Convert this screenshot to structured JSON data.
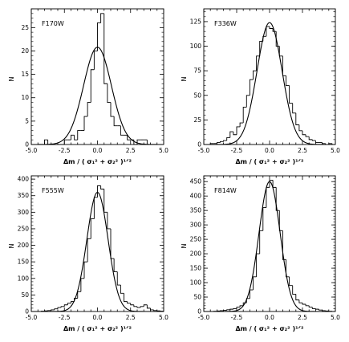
{
  "chart_data": [
    {
      "type": "bar",
      "label": "F170W",
      "title": "",
      "xlabel": "Δm / ( σ₁² + σ₂² )¹ᐟ²",
      "ylabel": "N",
      "xlim": [
        -5.0,
        5.0
      ],
      "ylim": [
        0,
        29
      ],
      "x_ticks": [
        "-5.0",
        "-2.5",
        "0.0",
        "2.5",
        "5.0"
      ],
      "y_ticks": [
        0,
        5,
        10,
        15,
        20,
        25
      ],
      "bin_edges": [
        -5.0,
        -4.75,
        -4.5,
        -4.25,
        -4.0,
        -3.75,
        -3.5,
        -3.25,
        -3.0,
        -2.75,
        -2.5,
        -2.25,
        -2.0,
        -1.75,
        -1.5,
        -1.25,
        -1.0,
        -0.75,
        -0.5,
        -0.25,
        0.0,
        0.25,
        0.5,
        0.75,
        1.0,
        1.25,
        1.5,
        1.75,
        2.0,
        2.25,
        2.5,
        2.75,
        3.0,
        3.25,
        3.5,
        3.75,
        4.0,
        4.25,
        4.5,
        4.75,
        5.0
      ],
      "values": [
        0,
        0,
        0,
        0,
        1,
        0,
        0,
        0,
        0,
        0,
        1,
        1,
        2,
        1,
        3,
        3,
        6,
        9,
        16,
        20,
        26,
        28,
        13,
        9,
        6,
        4,
        4,
        2,
        2,
        1,
        1,
        0,
        1,
        1,
        1,
        0,
        0,
        0,
        0,
        0
      ],
      "fit": {
        "type": "gaussian",
        "amplitude": 20.8,
        "mean": 0.0,
        "sigma": 1.05
      }
    },
    {
      "type": "bar",
      "label": "F336W",
      "title": "",
      "xlabel": "Δm / ( σ₁² + σ₂² )¹ᐟ²",
      "ylabel": "N",
      "xlim": [
        -5.0,
        5.0
      ],
      "ylim": [
        0,
        138
      ],
      "x_ticks": [
        "-5.0",
        "-2.5",
        "0.0",
        "2.5",
        "5.0"
      ],
      "y_ticks": [
        0,
        25,
        50,
        75,
        100,
        125
      ],
      "bin_edges": [
        -5.0,
        -4.75,
        -4.5,
        -4.25,
        -4.0,
        -3.75,
        -3.5,
        -3.25,
        -3.0,
        -2.75,
        -2.5,
        -2.25,
        -2.0,
        -1.75,
        -1.5,
        -1.25,
        -1.0,
        -0.75,
        -0.5,
        -0.25,
        0.0,
        0.25,
        0.5,
        0.75,
        1.0,
        1.25,
        1.5,
        1.75,
        2.0,
        2.25,
        2.5,
        2.75,
        3.0,
        3.25,
        3.5,
        3.75,
        4.0,
        4.25,
        4.5,
        4.75,
        5.0
      ],
      "values": [
        0,
        0,
        1,
        1,
        2,
        3,
        4,
        7,
        13,
        10,
        18,
        22,
        38,
        50,
        66,
        75,
        90,
        105,
        110,
        120,
        118,
        115,
        100,
        90,
        70,
        60,
        42,
        32,
        20,
        14,
        10,
        8,
        5,
        4,
        2,
        2,
        1,
        0,
        1,
        0
      ],
      "fit": {
        "type": "gaussian",
        "amplitude": 124,
        "mean": 0.0,
        "sigma": 0.95
      }
    },
    {
      "type": "bar",
      "label": "F555W",
      "title": "",
      "xlabel": "Δm / ( σ₁² + σ₂² )¹ᐟ²",
      "ylabel": "N",
      "xlim": [
        -5.0,
        5.0
      ],
      "ylim": [
        0,
        410
      ],
      "x_ticks": [
        "-5.0",
        "-2.5",
        "0.0",
        "2.5",
        "5.0"
      ],
      "y_ticks": [
        0,
        50,
        100,
        150,
        200,
        250,
        300,
        350,
        400
      ],
      "bin_edges": [
        -5.0,
        -4.75,
        -4.5,
        -4.25,
        -4.0,
        -3.75,
        -3.5,
        -3.25,
        -3.0,
        -2.75,
        -2.5,
        -2.25,
        -2.0,
        -1.75,
        -1.5,
        -1.25,
        -1.0,
        -0.75,
        -0.5,
        -0.25,
        0.0,
        0.25,
        0.5,
        0.75,
        1.0,
        1.25,
        1.5,
        1.75,
        2.0,
        2.25,
        2.5,
        2.75,
        3.0,
        3.25,
        3.5,
        3.75,
        4.0,
        4.25,
        4.5,
        4.75,
        5.0
      ],
      "values": [
        0,
        0,
        0,
        1,
        2,
        3,
        5,
        8,
        12,
        15,
        20,
        25,
        30,
        40,
        60,
        100,
        150,
        220,
        280,
        345,
        380,
        370,
        300,
        250,
        160,
        120,
        80,
        55,
        30,
        25,
        20,
        15,
        12,
        15,
        20,
        10,
        5,
        3,
        2,
        1
      ],
      "fit": {
        "type": "gaussian",
        "amplitude": 360,
        "mean": 0.0,
        "sigma": 0.8
      }
    },
    {
      "type": "bar",
      "label": "F814W",
      "title": "",
      "xlabel": "Δm / ( σ₁² + σ₂² )¹ᐟ²",
      "ylabel": "N",
      "xlim": [
        -5.0,
        5.0
      ],
      "ylim": [
        0,
        470
      ],
      "x_ticks": [
        "-5.0",
        "-2.5",
        "0.0",
        "2.5",
        "5.0"
      ],
      "y_ticks": [
        0,
        50,
        100,
        150,
        200,
        250,
        300,
        350,
        400,
        450
      ],
      "bin_edges": [
        -5.0,
        -4.75,
        -4.5,
        -4.25,
        -4.0,
        -3.75,
        -3.5,
        -3.25,
        -3.0,
        -2.75,
        -2.5,
        -2.25,
        -2.0,
        -1.75,
        -1.5,
        -1.25,
        -1.0,
        -0.75,
        -0.5,
        -0.25,
        0.0,
        0.25,
        0.5,
        0.75,
        1.0,
        1.25,
        1.5,
        1.75,
        2.0,
        2.25,
        2.5,
        2.75,
        3.0,
        3.25,
        3.5,
        3.75,
        4.0,
        4.25,
        4.5,
        4.75,
        5.0
      ],
      "values": [
        0,
        0,
        0,
        1,
        2,
        3,
        4,
        6,
        8,
        10,
        15,
        20,
        30,
        45,
        75,
        120,
        200,
        280,
        360,
        430,
        455,
        430,
        350,
        280,
        180,
        120,
        90,
        60,
        40,
        30,
        25,
        20,
        15,
        10,
        8,
        5,
        3,
        2,
        1,
        0
      ],
      "fit": {
        "type": "gaussian",
        "amplitude": 450,
        "mean": 0.0,
        "sigma": 0.8
      }
    }
  ]
}
